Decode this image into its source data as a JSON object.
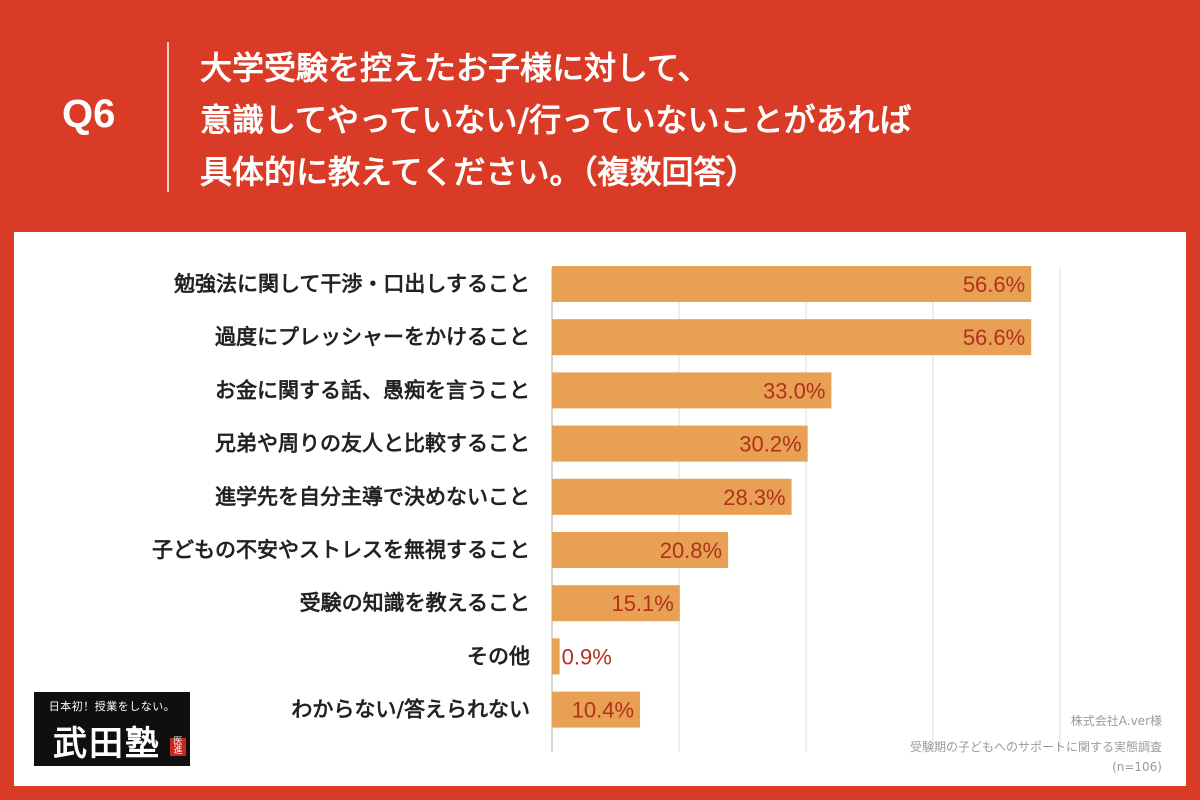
{
  "question": {
    "number": "Q6",
    "lines": [
      "大学受験を控えたお子様に対して、",
      "意識してやっていない/行っていないことがあれば",
      "具体的に教えてください。（複数回答）"
    ]
  },
  "chart_data": {
    "type": "bar",
    "orientation": "horizontal",
    "categories": [
      "勉強法に関して干渉・口出しすること",
      "過度にプレッシャーをかけること",
      "お金に関する話、愚痴を言うこと",
      "兄弟や周りの友人と比較すること",
      "進学先を自分主導で決めないこと",
      "子どもの不安やストレスを無視すること",
      "受験の知識を教えること",
      "その他",
      "わからない/答えられない"
    ],
    "values": [
      56.6,
      56.6,
      33.0,
      30.2,
      28.3,
      20.8,
      15.1,
      0.9,
      10.4
    ],
    "value_labels": [
      "56.6%",
      "56.6%",
      "33.0%",
      "30.2%",
      "28.3%",
      "20.8%",
      "15.1%",
      "0.9%",
      "10.4%"
    ],
    "xlim": [
      0,
      60
    ],
    "grid": true,
    "gridlines": [
      0,
      15,
      30,
      45,
      60
    ],
    "bar_color": "#e8a055",
    "label_color": "#b0311c"
  },
  "logo": {
    "tagline": "日本初！授業をしない。",
    "name": "武田塾",
    "stamp": "医進"
  },
  "source": {
    "company": "株式会社A.ver様",
    "survey": "受験期の子どもへのサポートに関する実態調査",
    "sample": "(n=106)"
  },
  "colors": {
    "background": "#d93b26",
    "panel": "#ffffff",
    "bar": "#e8a055",
    "value_text": "#b0311c"
  }
}
